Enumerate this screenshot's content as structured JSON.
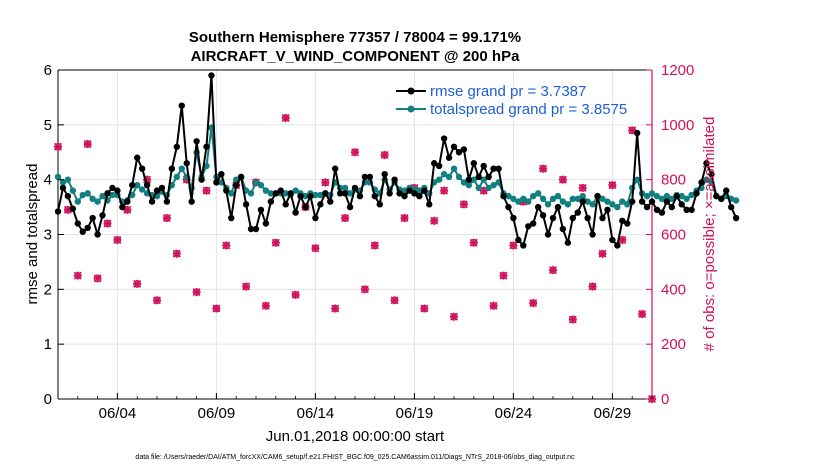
{
  "chart_data": {
    "type": "line",
    "title_line1": "Southern Hemisphere 77357 / 78004 = 99.171%",
    "title_line2": "AIRCRAFT_V_WIND_COMPONENT @ 200 hPa",
    "xlabel": "Jun.01,2018 00:00:00 start",
    "ylabel_left": "rmse and totalspread",
    "ylabel_right": "# of obs: o=possible; ×=assimilated",
    "x_ticks": [
      "06/04",
      "06/09",
      "06/14",
      "06/19",
      "06/24",
      "06/29"
    ],
    "y_left_ticks": [
      "0",
      "1",
      "2",
      "3",
      "4",
      "5",
      "6"
    ],
    "y_right_ticks": [
      "0",
      "200",
      "400",
      "600",
      "800",
      "1000",
      "1200"
    ],
    "xlim": [
      1,
      31
    ],
    "ylim_left": [
      0,
      6
    ],
    "ylim_right": [
      0,
      1200
    ],
    "footer": "data file: /Users/raeder/DAI/ATM_forcXX/CAM6_setup/f.e21.FHIST_BGC.f09_025.CAM6assim.011/Diags_NTrS_2018-06/obs_diag_output.nc",
    "colors": {
      "rmse": "#000000",
      "spread": "#108080",
      "obs": "#d0125a",
      "legend_text": "#1f5fd6"
    },
    "series": [
      {
        "name": "rmse grand pr = 3.7387",
        "x_start": 1.0,
        "x_step": 0.25,
        "values": [
          3.42,
          3.85,
          3.7,
          3.47,
          3.2,
          3.05,
          3.12,
          3.3,
          3.0,
          3.35,
          3.75,
          3.85,
          3.8,
          3.5,
          3.6,
          3.9,
          4.4,
          4.2,
          3.9,
          3.6,
          3.8,
          3.85,
          3.6,
          4.2,
          4.6,
          5.35,
          4.3,
          3.6,
          4.7,
          4.0,
          4.6,
          5.9,
          3.95,
          4.1,
          3.8,
          3.3,
          3.9,
          4.05,
          3.55,
          3.1,
          3.1,
          3.45,
          3.2,
          3.6,
          3.75,
          3.8,
          3.55,
          3.75,
          3.4,
          3.7,
          3.5,
          3.7,
          3.3,
          3.55,
          3.75,
          3.6,
          4.2,
          3.75,
          3.75,
          3.5,
          3.85,
          3.7,
          4.05,
          4.05,
          3.7,
          3.55,
          4.1,
          3.75,
          4.0,
          3.75,
          3.7,
          3.8,
          3.75,
          3.7,
          3.8,
          3.55,
          4.3,
          4.25,
          4.75,
          4.4,
          4.6,
          4.5,
          4.55,
          4.0,
          4.3,
          4.05,
          4.25,
          4.05,
          4.2,
          4.2,
          3.7,
          3.5,
          3.3,
          2.9,
          2.8,
          3.15,
          3.2,
          3.5,
          3.35,
          3.0,
          3.3,
          3.5,
          3.1,
          2.85,
          3.3,
          3.4,
          3.6,
          3.3,
          3.0,
          3.7,
          3.3,
          3.45,
          2.9,
          2.8,
          3.25,
          3.2,
          3.6,
          4.85,
          3.6,
          3.5,
          3.6,
          3.45,
          3.4,
          3.6,
          3.5,
          3.7,
          3.55,
          3.45,
          3.45,
          3.75,
          3.95,
          4.3,
          4.1,
          3.7,
          3.65,
          3.8,
          3.5,
          3.3
        ]
      },
      {
        "name": "totalspread grand pr = 3.8575",
        "x_start": 1.0,
        "x_step": 0.25,
        "values": [
          4.05,
          3.95,
          4.0,
          3.8,
          3.6,
          3.72,
          3.75,
          3.65,
          3.6,
          3.7,
          3.62,
          3.72,
          3.72,
          3.6,
          3.62,
          3.72,
          3.9,
          3.82,
          3.75,
          3.72,
          3.7,
          3.78,
          3.72,
          3.9,
          4.05,
          4.2,
          4.05,
          3.85,
          4.5,
          4.05,
          4.25,
          4.95,
          4.05,
          3.95,
          3.85,
          3.75,
          4.0,
          4.05,
          3.8,
          3.75,
          3.95,
          3.9,
          3.8,
          3.75,
          3.75,
          3.75,
          3.75,
          3.72,
          3.8,
          3.75,
          3.7,
          3.75,
          3.72,
          3.72,
          3.75,
          3.72,
          3.95,
          3.85,
          3.85,
          3.75,
          3.82,
          3.8,
          3.95,
          3.95,
          3.82,
          3.75,
          4.0,
          3.82,
          3.95,
          3.82,
          3.8,
          3.85,
          3.82,
          3.8,
          3.85,
          3.75,
          3.95,
          4.0,
          4.1,
          4.05,
          4.2,
          4.05,
          3.95,
          3.9,
          4.0,
          3.85,
          4.0,
          3.85,
          3.9,
          3.95,
          3.75,
          3.7,
          3.65,
          3.6,
          3.65,
          3.6,
          3.7,
          3.75,
          3.65,
          3.55,
          3.65,
          3.7,
          3.6,
          3.55,
          3.65,
          3.65,
          3.7,
          3.6,
          3.55,
          3.7,
          3.65,
          3.6,
          3.55,
          3.5,
          3.6,
          3.55,
          3.85,
          4.0,
          3.75,
          3.7,
          3.75,
          3.7,
          3.65,
          3.7,
          3.65,
          3.72,
          3.7,
          3.65,
          3.72,
          3.8,
          3.85,
          4.0,
          3.95,
          3.7,
          3.65,
          3.7,
          3.65,
          3.62
        ]
      },
      {
        "name": "# of obs possible / assimilated",
        "values_x": [
          1.0,
          1.5,
          2.0,
          2.5,
          3.0,
          3.5,
          4.0,
          4.5,
          5.0,
          5.5,
          6.0,
          6.5,
          7.0,
          7.5,
          8.0,
          8.5,
          9.0,
          9.5,
          10.0,
          10.5,
          11.0,
          11.5,
          12.0,
          12.5,
          13.0,
          13.5,
          14.0,
          14.5,
          15.0,
          15.5,
          16.0,
          16.5,
          17.0,
          17.5,
          18.0,
          18.5,
          19.0,
          19.5,
          20.0,
          20.5,
          21.0,
          21.5,
          22.0,
          22.5,
          23.0,
          23.5,
          24.0,
          24.5,
          25.0,
          25.5,
          26.0,
          26.5,
          27.0,
          27.5,
          28.0,
          28.5,
          29.0,
          29.5,
          30.0,
          30.5,
          31.0
        ],
        "values": [
          920,
          690,
          450,
          930,
          440,
          640,
          580,
          690,
          420,
          800,
          360,
          660,
          530,
          800,
          390,
          760,
          330,
          560,
          780,
          410,
          790,
          340,
          570,
          1025,
          380,
          700,
          550,
          790,
          330,
          660,
          900,
          400,
          560,
          890,
          360,
          660,
          770,
          330,
          650,
          760,
          300,
          710,
          570,
          760,
          340,
          450,
          560,
          720,
          350,
          840,
          470,
          800,
          290,
          770,
          410,
          530,
          780,
          580,
          980,
          310,
          0
        ]
      }
    ]
  }
}
